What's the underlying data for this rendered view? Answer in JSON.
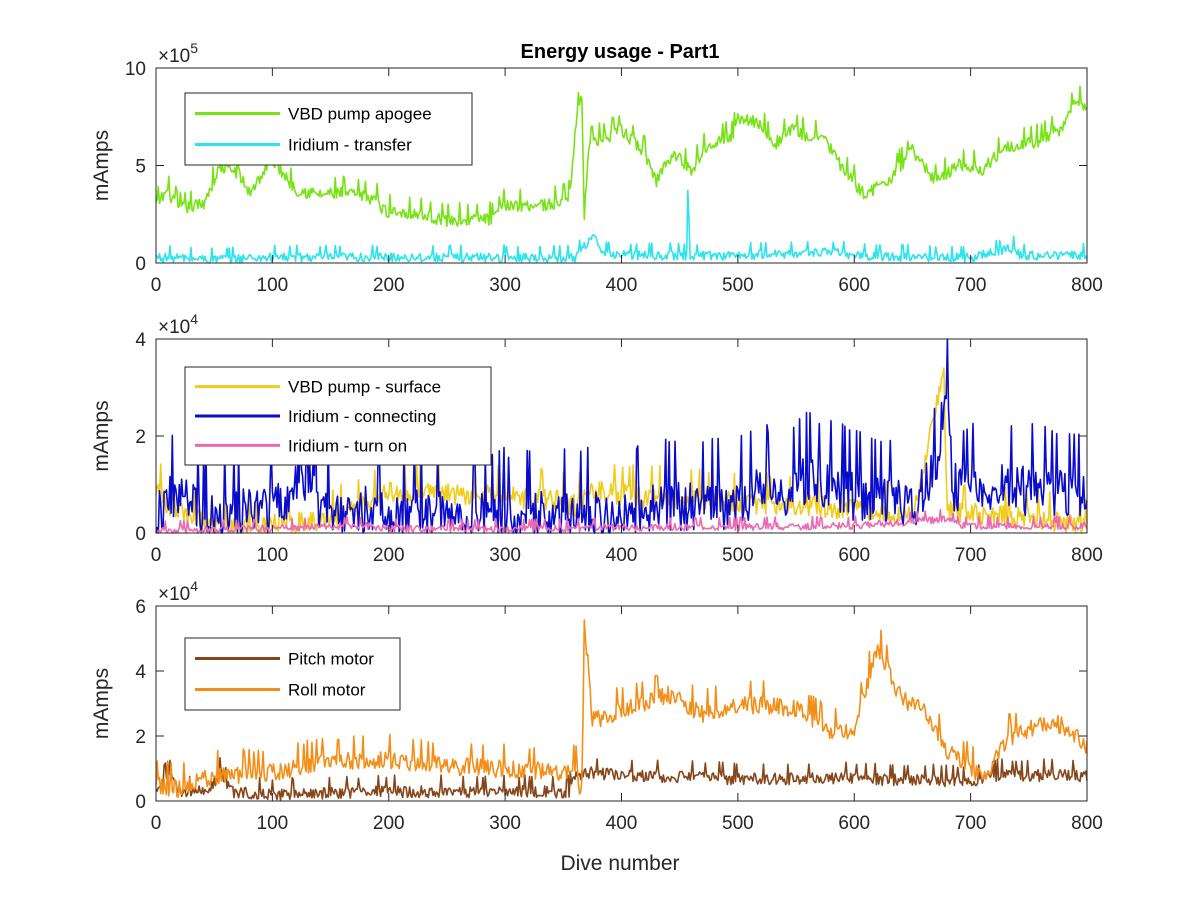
{
  "figure": {
    "title": "Energy usage - Part1",
    "xlabel": "Dive number"
  },
  "chart_data": [
    {
      "type": "line",
      "title": "Energy usage - Part1",
      "xlabel": "",
      "ylabel": "mAmps",
      "xlim": [
        0,
        800
      ],
      "ylim": [
        0,
        10
      ],
      "exponent_label": "×10",
      "exponent_power": "5",
      "x_ticks": [
        0,
        100,
        200,
        300,
        400,
        500,
        600,
        700,
        800
      ],
      "x_tick_labels": [
        "0",
        "100",
        "200",
        "300",
        "400",
        "500",
        "600",
        "700",
        "800"
      ],
      "y_ticks": [
        0,
        5,
        10
      ],
      "y_tick_labels": [
        "0",
        "5",
        "10"
      ],
      "grid": false,
      "legend_position": "top-left",
      "series": [
        {
          "name": "VBD pump apogee",
          "color": "#77e314",
          "noise": 0.35,
          "anchors": [
            [
              0,
              3.0
            ],
            [
              10,
              3.7
            ],
            [
              20,
              2.8
            ],
            [
              40,
              3.0
            ],
            [
              55,
              4.9
            ],
            [
              70,
              4.7
            ],
            [
              80,
              3.6
            ],
            [
              100,
              5.3
            ],
            [
              120,
              3.8
            ],
            [
              140,
              3.5
            ],
            [
              160,
              3.6
            ],
            [
              190,
              3.3
            ],
            [
              195,
              2.7
            ],
            [
              220,
              2.6
            ],
            [
              250,
              2.2
            ],
            [
              290,
              2.3
            ],
            [
              300,
              3.0
            ],
            [
              340,
              3.0
            ],
            [
              355,
              3.4
            ],
            [
              362,
              7.8
            ],
            [
              366,
              8.5
            ],
            [
              368,
              2.6
            ],
            [
              372,
              6.2
            ],
            [
              385,
              6.4
            ],
            [
              400,
              6.8
            ],
            [
              420,
              5.7
            ],
            [
              430,
              4.2
            ],
            [
              440,
              5.4
            ],
            [
              448,
              5.5
            ],
            [
              460,
              4.8
            ],
            [
              475,
              6.2
            ],
            [
              495,
              6.5
            ],
            [
              500,
              7.5
            ],
            [
              520,
              7.2
            ],
            [
              530,
              6.0
            ],
            [
              545,
              6.9
            ],
            [
              560,
              6.5
            ],
            [
              575,
              6.4
            ],
            [
              590,
              4.8
            ],
            [
              610,
              3.5
            ],
            [
              630,
              4.3
            ],
            [
              650,
              5.8
            ],
            [
              670,
              4.2
            ],
            [
              690,
              5.1
            ],
            [
              710,
              4.8
            ],
            [
              730,
              6.0
            ],
            [
              760,
              6.3
            ],
            [
              780,
              7.0
            ],
            [
              790,
              8.3
            ],
            [
              800,
              8.1
            ]
          ]
        },
        {
          "name": "Iridium - transfer",
          "color": "#2de3ec",
          "noise": 0.25,
          "anchors": [
            [
              0,
              0.3
            ],
            [
              50,
              0.2
            ],
            [
              100,
              0.3
            ],
            [
              200,
              0.3
            ],
            [
              300,
              0.3
            ],
            [
              360,
              0.3
            ],
            [
              376,
              1.5
            ],
            [
              382,
              0.5
            ],
            [
              420,
              0.4
            ],
            [
              450,
              0.4
            ],
            [
              456,
              0.4
            ],
            [
              457,
              3.7
            ],
            [
              459,
              0.4
            ],
            [
              500,
              0.4
            ],
            [
              550,
              0.5
            ],
            [
              575,
              0.6
            ],
            [
              600,
              0.4
            ],
            [
              670,
              0.3
            ],
            [
              700,
              0.3
            ],
            [
              738,
              0.8
            ],
            [
              742,
              0.4
            ],
            [
              800,
              0.4
            ]
          ]
        }
      ]
    },
    {
      "type": "line",
      "title": "",
      "xlabel": "",
      "ylabel": "mAmps",
      "xlim": [
        0,
        800
      ],
      "ylim": [
        0,
        4
      ],
      "exponent_label": "×10",
      "exponent_power": "4",
      "x_ticks": [
        0,
        100,
        200,
        300,
        400,
        500,
        600,
        700,
        800
      ],
      "x_tick_labels": [
        "0",
        "100",
        "200",
        "300",
        "400",
        "500",
        "600",
        "700",
        "800"
      ],
      "y_ticks": [
        0,
        2,
        4
      ],
      "y_tick_labels": [
        "0",
        "2",
        "4"
      ],
      "grid": false,
      "legend_position": "top-left",
      "series": [
        {
          "name": "VBD pump - surface",
          "color": "#f1cc1a",
          "noise": 0.25,
          "anchors": [
            [
              0,
              1.0
            ],
            [
              10,
              0.6
            ],
            [
              30,
              0.3
            ],
            [
              60,
              0.2
            ],
            [
              100,
              0.2
            ],
            [
              150,
              0.3
            ],
            [
              180,
              0.6
            ],
            [
              200,
              0.85
            ],
            [
              250,
              0.85
            ],
            [
              300,
              0.75
            ],
            [
              340,
              0.7
            ],
            [
              360,
              0.6
            ],
            [
              380,
              0.9
            ],
            [
              400,
              0.8
            ],
            [
              450,
              0.75
            ],
            [
              500,
              0.65
            ],
            [
              550,
              0.6
            ],
            [
              600,
              0.5
            ],
            [
              650,
              0.4
            ],
            [
              677,
              3.3
            ],
            [
              680,
              0.5
            ],
            [
              700,
              0.4
            ],
            [
              750,
              0.35
            ],
            [
              800,
              0.1
            ]
          ]
        },
        {
          "name": "Iridium - connecting",
          "color": "#0a0ccc",
          "noise": 0.55,
          "anchors": [
            [
              0,
              0.3
            ],
            [
              10,
              0.8
            ],
            [
              50,
              0.4
            ],
            [
              100,
              0.5
            ],
            [
              136,
              1.4
            ],
            [
              140,
              0.5
            ],
            [
              200,
              0.5
            ],
            [
              300,
              0.4
            ],
            [
              350,
              0.4
            ],
            [
              400,
              0.5
            ],
            [
              450,
              0.6
            ],
            [
              500,
              0.6
            ],
            [
              520,
              0.9
            ],
            [
              550,
              0.9
            ],
            [
              560,
              1.2
            ],
            [
              600,
              0.8
            ],
            [
              650,
              0.6
            ],
            [
              675,
              1.5
            ],
            [
              680,
              3.6
            ],
            [
              684,
              1.0
            ],
            [
              700,
              0.9
            ],
            [
              730,
              1.0
            ],
            [
              750,
              0.9
            ],
            [
              800,
              0.8
            ]
          ]
        },
        {
          "name": "Iridium - turn on",
          "color": "#eb6bb3",
          "noise": 0.08,
          "anchors": [
            [
              0,
              0.05
            ],
            [
              100,
              0.1
            ],
            [
              180,
              0.15
            ],
            [
              200,
              0.1
            ],
            [
              350,
              0.1
            ],
            [
              400,
              0.12
            ],
            [
              600,
              0.15
            ],
            [
              680,
              0.3
            ],
            [
              690,
              0.15
            ],
            [
              800,
              0.15
            ]
          ]
        }
      ]
    },
    {
      "type": "line",
      "title": "",
      "xlabel": "Dive number",
      "ylabel": "mAmps",
      "xlim": [
        0,
        800
      ],
      "ylim": [
        0,
        6
      ],
      "exponent_label": "×10",
      "exponent_power": "4",
      "x_ticks": [
        0,
        100,
        200,
        300,
        400,
        500,
        600,
        700,
        800
      ],
      "x_tick_labels": [
        "0",
        "100",
        "200",
        "300",
        "400",
        "500",
        "600",
        "700",
        "800"
      ],
      "y_ticks": [
        0,
        2,
        4,
        6
      ],
      "y_tick_labels": [
        "0",
        "2",
        "4",
        "6"
      ],
      "grid": false,
      "legend_position": "top-left",
      "series": [
        {
          "name": "Pitch motor",
          "color": "#86461a",
          "noise": 0.2,
          "anchors": [
            [
              0,
              0.4
            ],
            [
              15,
              0.9
            ],
            [
              20,
              0.3
            ],
            [
              45,
              0.3
            ],
            [
              55,
              0.9
            ],
            [
              65,
              0.3
            ],
            [
              100,
              0.2
            ],
            [
              200,
              0.3
            ],
            [
              300,
              0.3
            ],
            [
              355,
              0.3
            ],
            [
              360,
              0.8
            ],
            [
              370,
              0.9
            ],
            [
              400,
              0.8
            ],
            [
              500,
              0.7
            ],
            [
              600,
              0.7
            ],
            [
              700,
              0.6
            ],
            [
              720,
              0.8
            ],
            [
              800,
              0.8
            ]
          ]
        },
        {
          "name": "Roll motor",
          "color": "#f38f19",
          "noise": 0.3,
          "anchors": [
            [
              0,
              0.5
            ],
            [
              20,
              0.4
            ],
            [
              50,
              0.8
            ],
            [
              100,
              0.9
            ],
            [
              140,
              1.2
            ],
            [
              200,
              1.3
            ],
            [
              250,
              1.1
            ],
            [
              300,
              1.0
            ],
            [
              350,
              0.9
            ],
            [
              362,
              1.0
            ],
            [
              366,
              0.0
            ],
            [
              368,
              5.6
            ],
            [
              375,
              2.5
            ],
            [
              400,
              2.8
            ],
            [
              440,
              3.3
            ],
            [
              470,
              2.7
            ],
            [
              500,
              3.0
            ],
            [
              550,
              2.9
            ],
            [
              580,
              2.1
            ],
            [
              600,
              2.2
            ],
            [
              620,
              4.8
            ],
            [
              640,
              3.2
            ],
            [
              660,
              2.8
            ],
            [
              680,
              1.6
            ],
            [
              700,
              1.0
            ],
            [
              715,
              0.8
            ],
            [
              730,
              1.9
            ],
            [
              770,
              2.5
            ],
            [
              790,
              2.1
            ],
            [
              800,
              1.7
            ]
          ]
        }
      ]
    }
  ]
}
